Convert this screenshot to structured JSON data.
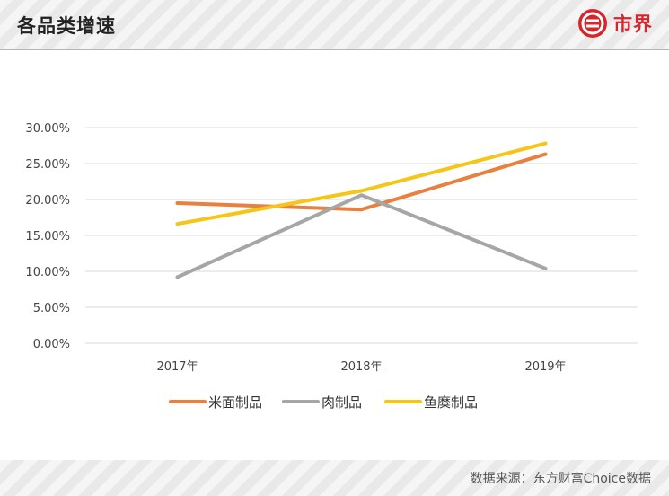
{
  "header": {
    "title": "各品类增速",
    "logo_text": "市界"
  },
  "footer": {
    "source": "数据来源：东方财富Choice数据"
  },
  "colors": {
    "米面制品": "#e8803f",
    "肉制品": "#a6a6a6",
    "鱼糜制品": "#f5c518"
  },
  "chart_data": {
    "type": "line",
    "categories": [
      "2017年",
      "2018年",
      "2019年"
    ],
    "series": [
      {
        "name": "米面制品",
        "values": [
          0.195,
          0.186,
          0.263
        ]
      },
      {
        "name": "肉制品",
        "values": [
          0.092,
          0.206,
          0.104
        ]
      },
      {
        "name": "鱼糜制品",
        "values": [
          0.166,
          0.212,
          0.278
        ]
      }
    ],
    "ylim": [
      0,
      0.3
    ],
    "yticks": [
      "0.00%",
      "5.00%",
      "10.00%",
      "15.00%",
      "20.00%",
      "25.00%",
      "30.00%"
    ],
    "grid": true,
    "legend": "bottom"
  }
}
